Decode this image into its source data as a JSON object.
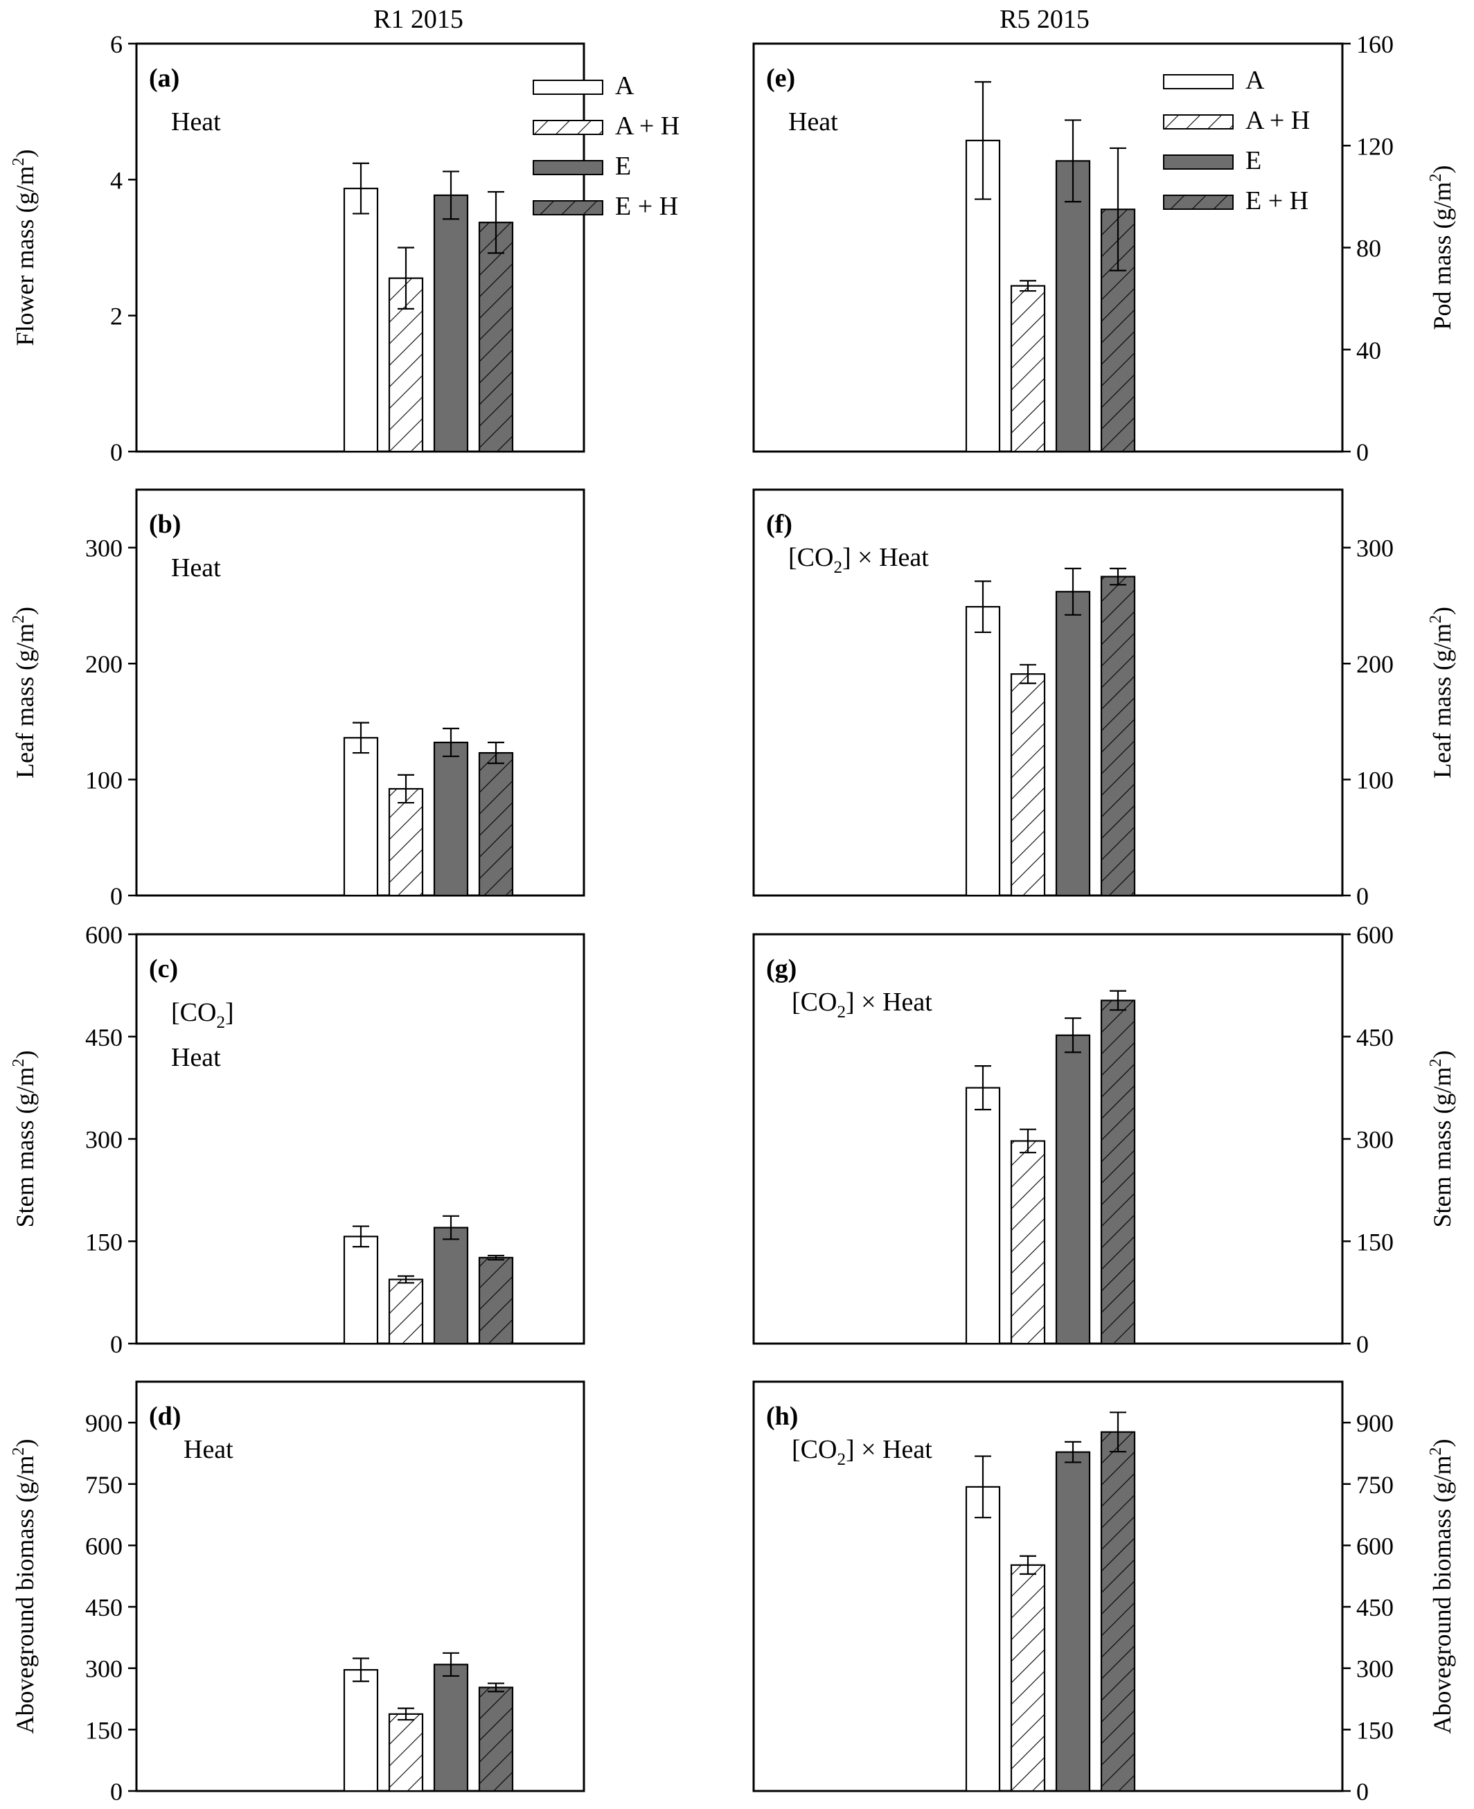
{
  "column_titles": [
    "R1 2015",
    "R5 2015"
  ],
  "legend": [
    {
      "label": "A",
      "style": "open"
    },
    {
      "label": "A + H",
      "style": "open-hatched"
    },
    {
      "label": "E",
      "style": "filled"
    },
    {
      "label": "E + H",
      "style": "filled-hatched"
    }
  ],
  "colors": {
    "filled": "#6e6e6e",
    "open": "#ffffff",
    "stroke": "#000000"
  },
  "chart_data": [
    {
      "id": "a",
      "type": "bar",
      "panel_label": "(a)",
      "annotation": [
        "Heat"
      ],
      "ylabel": "Flower mass (g/m²)",
      "yaxis_side": "left",
      "ylim": [
        0,
        6
      ],
      "yticks": [
        0,
        2,
        4,
        6
      ],
      "tick_labels": [
        "0",
        "2",
        "4",
        "6"
      ],
      "categories": [
        "A",
        "A + H",
        "E",
        "E + H"
      ],
      "values": [
        3.87,
        2.55,
        3.77,
        3.37
      ],
      "errors": [
        0.37,
        0.45,
        0.35,
        0.45
      ],
      "legend_shown": true
    },
    {
      "id": "b",
      "type": "bar",
      "panel_label": "(b)",
      "annotation": [
        "Heat"
      ],
      "ylabel": "Leaf mass (g/m²)",
      "yaxis_side": "left",
      "ylim": [
        0,
        350
      ],
      "yticks": [
        0,
        100,
        200,
        300
      ],
      "tick_labels": [
        "0",
        "100",
        "200",
        "300"
      ],
      "categories": [
        "A",
        "A + H",
        "E",
        "E + H"
      ],
      "values": [
        136,
        92,
        132,
        123
      ],
      "errors": [
        13,
        12,
        12,
        9
      ],
      "legend_shown": false
    },
    {
      "id": "c",
      "type": "bar",
      "panel_label": "(c)",
      "annotation": [
        "[CO2]",
        "Heat"
      ],
      "ylabel": "Stem mass (g/m²)",
      "yaxis_side": "left",
      "ylim": [
        0,
        600
      ],
      "yticks": [
        0,
        150,
        300,
        450,
        600
      ],
      "tick_labels": [
        "0",
        "150",
        "300",
        "450",
        "600"
      ],
      "categories": [
        "A",
        "A + H",
        "E",
        "E + H"
      ],
      "values": [
        157,
        94,
        170,
        126
      ],
      "errors": [
        15,
        5,
        17,
        3
      ],
      "legend_shown": false
    },
    {
      "id": "d",
      "type": "bar",
      "panel_label": "(d)",
      "annotation": [
        "Heat"
      ],
      "ylabel": "Aboveground biomass (g/m²)",
      "yaxis_side": "left",
      "ylim": [
        0,
        1000
      ],
      "yticks": [
        0,
        150,
        300,
        450,
        600,
        750,
        900
      ],
      "tick_labels": [
        "0",
        "150",
        "300",
        "450",
        "600",
        "750",
        "900"
      ],
      "categories": [
        "A",
        "A + H",
        "E",
        "E + H"
      ],
      "values": [
        296,
        188,
        309,
        253
      ],
      "errors": [
        28,
        14,
        28,
        10
      ],
      "legend_shown": false
    },
    {
      "id": "e",
      "type": "bar",
      "panel_label": "(e)",
      "annotation": [
        "Heat"
      ],
      "ylabel": "Pod mass (g/m²)",
      "yaxis_side": "right",
      "ylim": [
        0,
        160
      ],
      "yticks": [
        0,
        40,
        80,
        120,
        160
      ],
      "tick_labels": [
        "0",
        "40",
        "80",
        "120",
        "160"
      ],
      "categories": [
        "A",
        "A + H",
        "E",
        "E + H"
      ],
      "values": [
        122,
        65,
        114,
        95
      ],
      "errors": [
        23,
        2,
        16,
        24
      ],
      "legend_shown": true
    },
    {
      "id": "f",
      "type": "bar",
      "panel_label": "(f)",
      "annotation": [
        "[CO2] × Heat"
      ],
      "ylabel": "Leaf mass (g/m²)",
      "yaxis_side": "right",
      "ylim": [
        0,
        350
      ],
      "yticks": [
        0,
        100,
        200,
        300
      ],
      "tick_labels": [
        "0",
        "100",
        "200",
        "300"
      ],
      "categories": [
        "A",
        "A + H",
        "E",
        "E + H"
      ],
      "values": [
        249,
        191,
        262,
        275
      ],
      "errors": [
        22,
        8,
        20,
        7
      ],
      "legend_shown": false
    },
    {
      "id": "g",
      "type": "bar",
      "panel_label": "(g)",
      "annotation": [
        "[CO2] × Heat"
      ],
      "ylabel": "Stem mass (g/m²)",
      "yaxis_side": "right",
      "ylim": [
        0,
        600
      ],
      "yticks": [
        0,
        150,
        300,
        450,
        600
      ],
      "tick_labels": [
        "0",
        "150",
        "300",
        "450",
        "600"
      ],
      "categories": [
        "A",
        "A + H",
        "E",
        "E + H"
      ],
      "values": [
        375,
        297,
        452,
        503
      ],
      "errors": [
        32,
        17,
        25,
        14
      ],
      "legend_shown": false
    },
    {
      "id": "h",
      "type": "bar",
      "panel_label": "(h)",
      "annotation": [
        "[CO2] × Heat"
      ],
      "ylabel": "Aboveground biomass (g/m²)",
      "yaxis_side": "right",
      "ylim": [
        0,
        1000
      ],
      "yticks": [
        0,
        150,
        300,
        450,
        600,
        750,
        900
      ],
      "tick_labels": [
        "0",
        "150",
        "300",
        "450",
        "600",
        "750",
        "900"
      ],
      "categories": [
        "A",
        "A + H",
        "E",
        "E + H"
      ],
      "values": [
        743,
        552,
        828,
        877
      ],
      "errors": [
        75,
        22,
        25,
        48
      ],
      "legend_shown": false
    }
  ]
}
